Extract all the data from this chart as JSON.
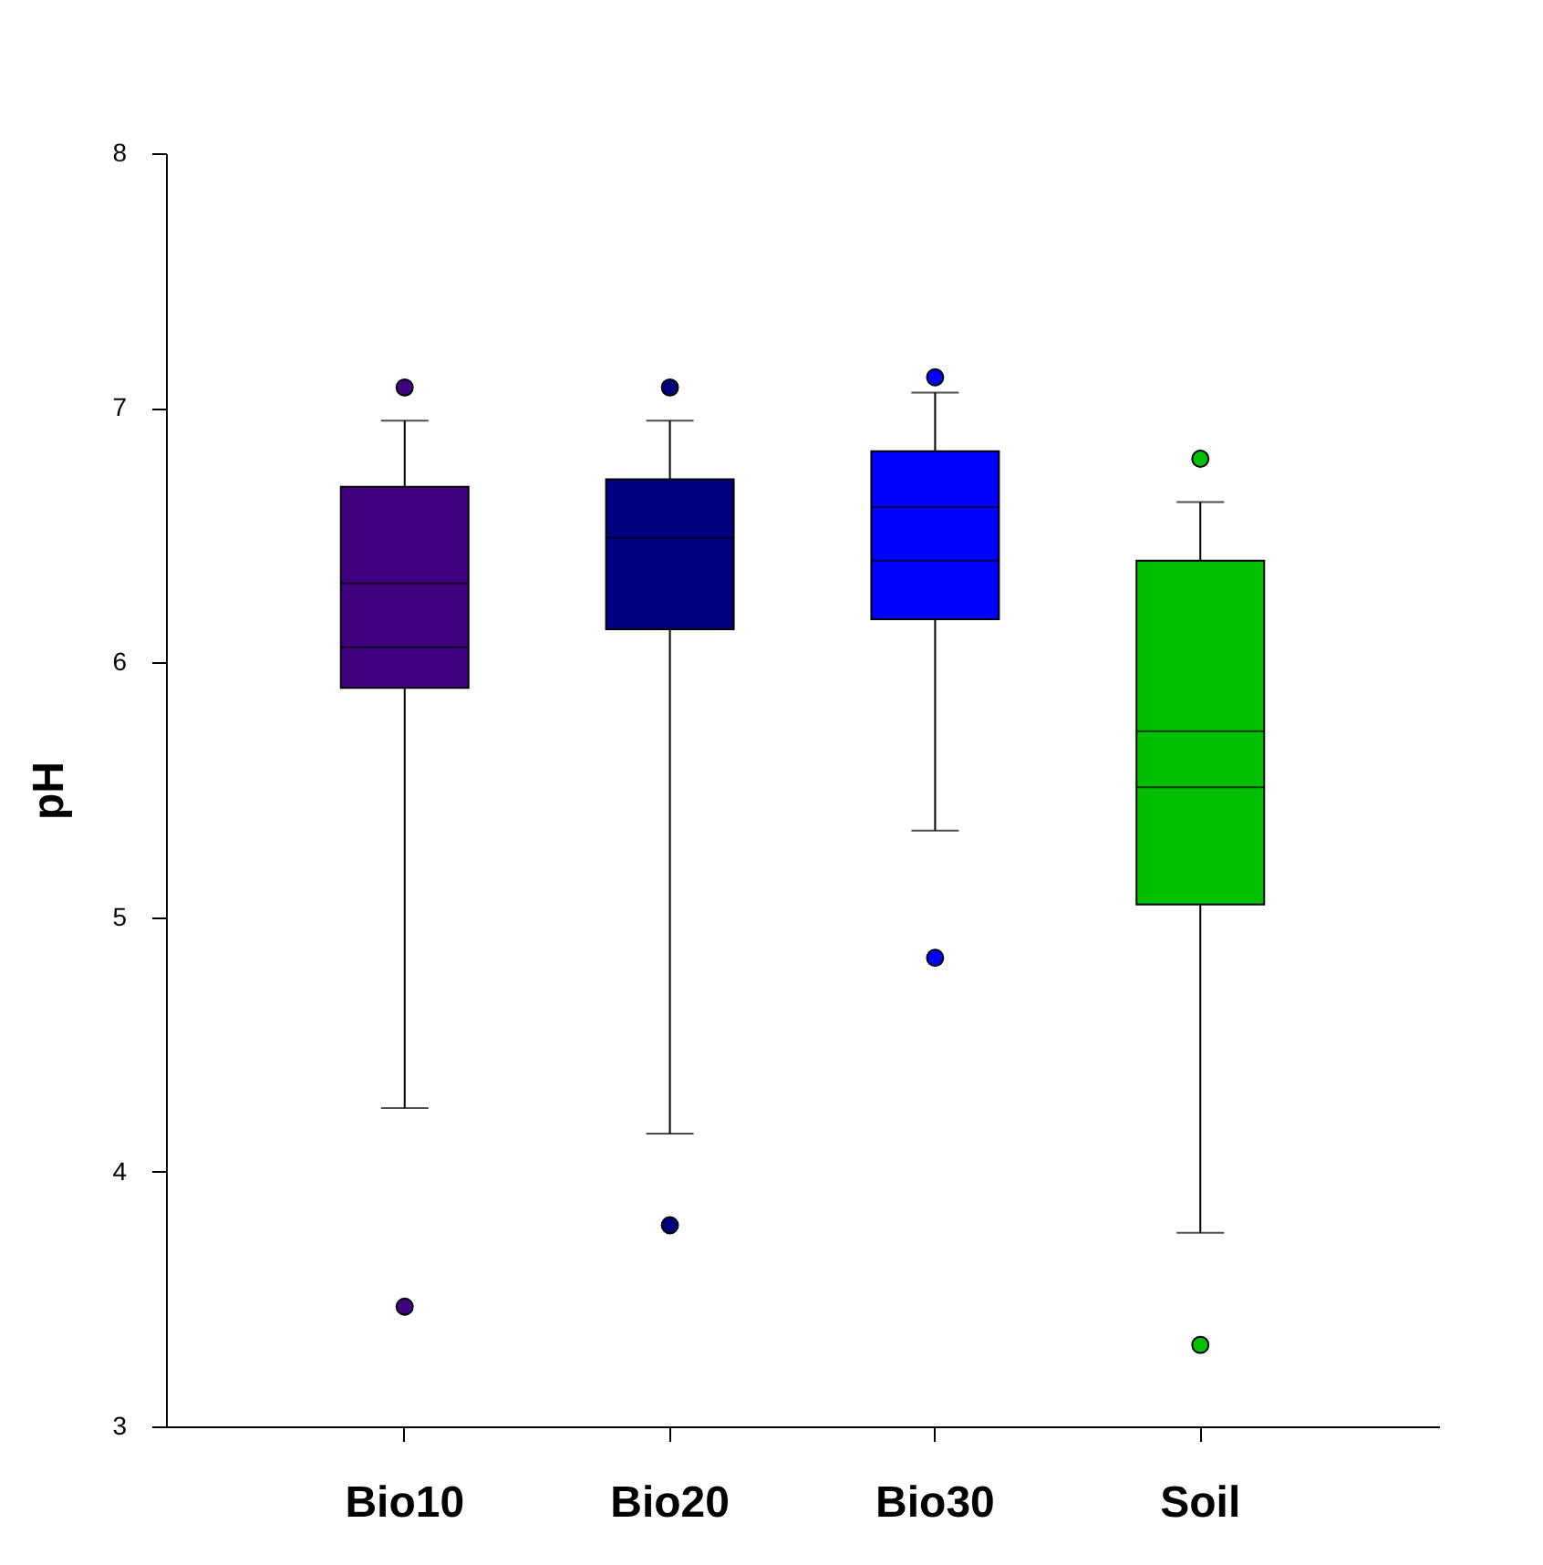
{
  "chart_data": {
    "type": "box",
    "ylabel": "pH",
    "categories": [
      "Bio10",
      "Bio20",
      "Bio30",
      "Soil"
    ],
    "colors": [
      "#400080",
      "#000080",
      "#0000ff",
      "#00c000"
    ],
    "boxes": [
      {
        "low": 4.25,
        "q1": 5.9,
        "median": 6.31,
        "q3": 6.69,
        "high": 6.95,
        "mean": 6.06,
        "outliers": [
          7.08,
          3.47
        ]
      },
      {
        "low": 4.15,
        "q1": 6.13,
        "median": 6.49,
        "q3": 6.72,
        "high": 6.95,
        "outliers": [
          7.08,
          3.79
        ]
      },
      {
        "low": 5.34,
        "q1": 6.17,
        "median": 6.61,
        "q3": 6.83,
        "high": 7.06,
        "mean": 6.4,
        "outliers": [
          7.12,
          4.84
        ]
      },
      {
        "low": 3.76,
        "q1": 5.05,
        "median": 5.73,
        "q3": 6.4,
        "high": 6.63,
        "mean": 5.51,
        "outliers": [
          6.8,
          3.32
        ]
      }
    ],
    "ylim": [
      3,
      8
    ],
    "yticks": [
      3,
      4,
      5,
      6,
      7,
      8
    ],
    "grid": false,
    "legend": false
  }
}
